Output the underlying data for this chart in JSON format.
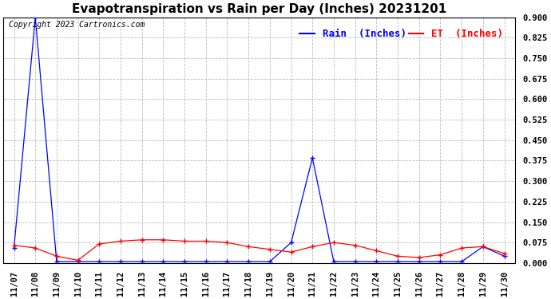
{
  "title": "Evapotranspiration vs Rain per Day (Inches) 20231201",
  "copyright": "Copyright 2023 Cartronics.com",
  "legend_rain": "Rain  (Inches)",
  "legend_et": "ET  (Inches)",
  "x_labels": [
    "11/07",
    "11/08",
    "11/09",
    "11/10",
    "11/11",
    "11/12",
    "11/13",
    "11/14",
    "11/15",
    "11/16",
    "11/17",
    "11/18",
    "11/19",
    "11/20",
    "11/21",
    "11/22",
    "11/23",
    "11/24",
    "11/25",
    "11/26",
    "11/27",
    "11/28",
    "11/29",
    "11/30"
  ],
  "rain": [
    0.055,
    0.9,
    0.005,
    0.005,
    0.005,
    0.005,
    0.005,
    0.005,
    0.005,
    0.005,
    0.005,
    0.005,
    0.005,
    0.075,
    0.385,
    0.005,
    0.005,
    0.005,
    0.005,
    0.005,
    0.005,
    0.005,
    0.06,
    0.025
  ],
  "et": [
    0.065,
    0.055,
    0.025,
    0.01,
    0.07,
    0.08,
    0.085,
    0.085,
    0.08,
    0.08,
    0.075,
    0.06,
    0.05,
    0.04,
    0.06,
    0.075,
    0.065,
    0.045,
    0.025,
    0.02,
    0.03,
    0.055,
    0.06,
    0.035
  ],
  "ylim": [
    0.0,
    0.9
  ],
  "yticks": [
    0.0,
    0.075,
    0.15,
    0.225,
    0.3,
    0.375,
    0.45,
    0.525,
    0.6,
    0.675,
    0.75,
    0.825,
    0.9
  ],
  "rain_color": "#0000ff",
  "et_color": "#ff0000",
  "grid_color": "#bbbbbb",
  "bg_color": "#ffffff",
  "title_fontsize": 11,
  "tick_fontsize": 7.5,
  "copyright_fontsize": 7,
  "legend_fontsize": 9
}
